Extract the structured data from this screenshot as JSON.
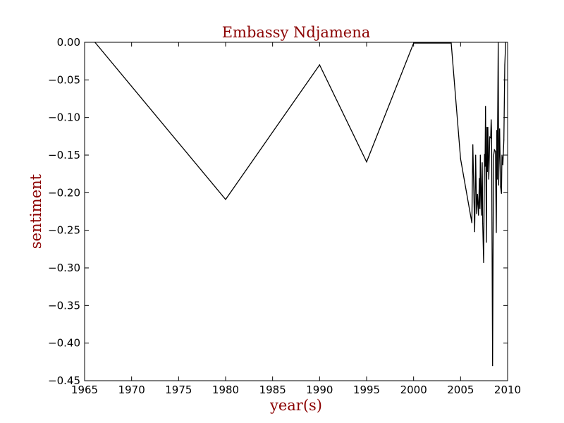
{
  "chart_data": {
    "type": "line",
    "title": "Embassy Ndjamena",
    "xlabel": "year(s)",
    "ylabel": "sentiment",
    "xlim": [
      1965,
      2010
    ],
    "ylim": [
      -0.45,
      0.0
    ],
    "x_ticks": [
      "1965",
      "1970",
      "1975",
      "1980",
      "1985",
      "1990",
      "1995",
      "2000",
      "2005",
      "2010"
    ],
    "y_ticks": [
      "0.00",
      "−0.05",
      "−0.10",
      "−0.15",
      "−0.20",
      "−0.25",
      "−0.30",
      "−0.35",
      "−0.40",
      "−0.45"
    ],
    "grid": false,
    "colors": {
      "line": "#000000",
      "title": "#8b0000",
      "axis_label": "#8b0000"
    },
    "series": [
      {
        "points": [
          [
            1966.1,
            0.0
          ],
          [
            1980.0,
            -0.209
          ],
          [
            1990.0,
            -0.03
          ],
          [
            1995.0,
            -0.159
          ],
          [
            2000.0,
            -0.001
          ],
          [
            2004.0,
            -0.001
          ],
          [
            2005.0,
            -0.155
          ],
          [
            2006.2,
            -0.24
          ],
          [
            2006.3,
            -0.136
          ],
          [
            2006.5,
            -0.252
          ],
          [
            2006.6,
            -0.15
          ],
          [
            2006.7,
            -0.228
          ],
          [
            2006.8,
            -0.202
          ],
          [
            2006.9,
            -0.23
          ],
          [
            2007.0,
            -0.181
          ],
          [
            2007.05,
            -0.221
          ],
          [
            2007.1,
            -0.15
          ],
          [
            2007.2,
            -0.23
          ],
          [
            2007.3,
            -0.16
          ],
          [
            2007.35,
            -0.241
          ],
          [
            2007.45,
            -0.293
          ],
          [
            2007.55,
            -0.149
          ],
          [
            2007.6,
            -0.165
          ],
          [
            2007.65,
            -0.085
          ],
          [
            2007.75,
            -0.266
          ],
          [
            2007.8,
            -0.113
          ],
          [
            2007.85,
            -0.172
          ],
          [
            2007.9,
            -0.113
          ],
          [
            2008.0,
            -0.182
          ],
          [
            2008.1,
            -0.126
          ],
          [
            2008.2,
            -0.127
          ],
          [
            2008.25,
            -0.103
          ],
          [
            2008.3,
            -0.12
          ],
          [
            2008.4,
            -0.43
          ],
          [
            2008.5,
            -0.152
          ],
          [
            2008.6,
            -0.143
          ],
          [
            2008.7,
            -0.145
          ],
          [
            2008.8,
            -0.253
          ],
          [
            2008.85,
            -0.117
          ],
          [
            2008.9,
            -0.182
          ],
          [
            2009.0,
            0.0
          ],
          [
            2009.05,
            -0.19
          ],
          [
            2009.15,
            -0.115
          ],
          [
            2009.25,
            -0.192
          ],
          [
            2009.35,
            -0.201
          ],
          [
            2009.4,
            -0.15
          ],
          [
            2009.5,
            -0.163
          ],
          [
            2009.6,
            -0.13
          ],
          [
            2009.7,
            -0.03
          ],
          [
            2009.8,
            0.0
          ]
        ]
      }
    ]
  }
}
